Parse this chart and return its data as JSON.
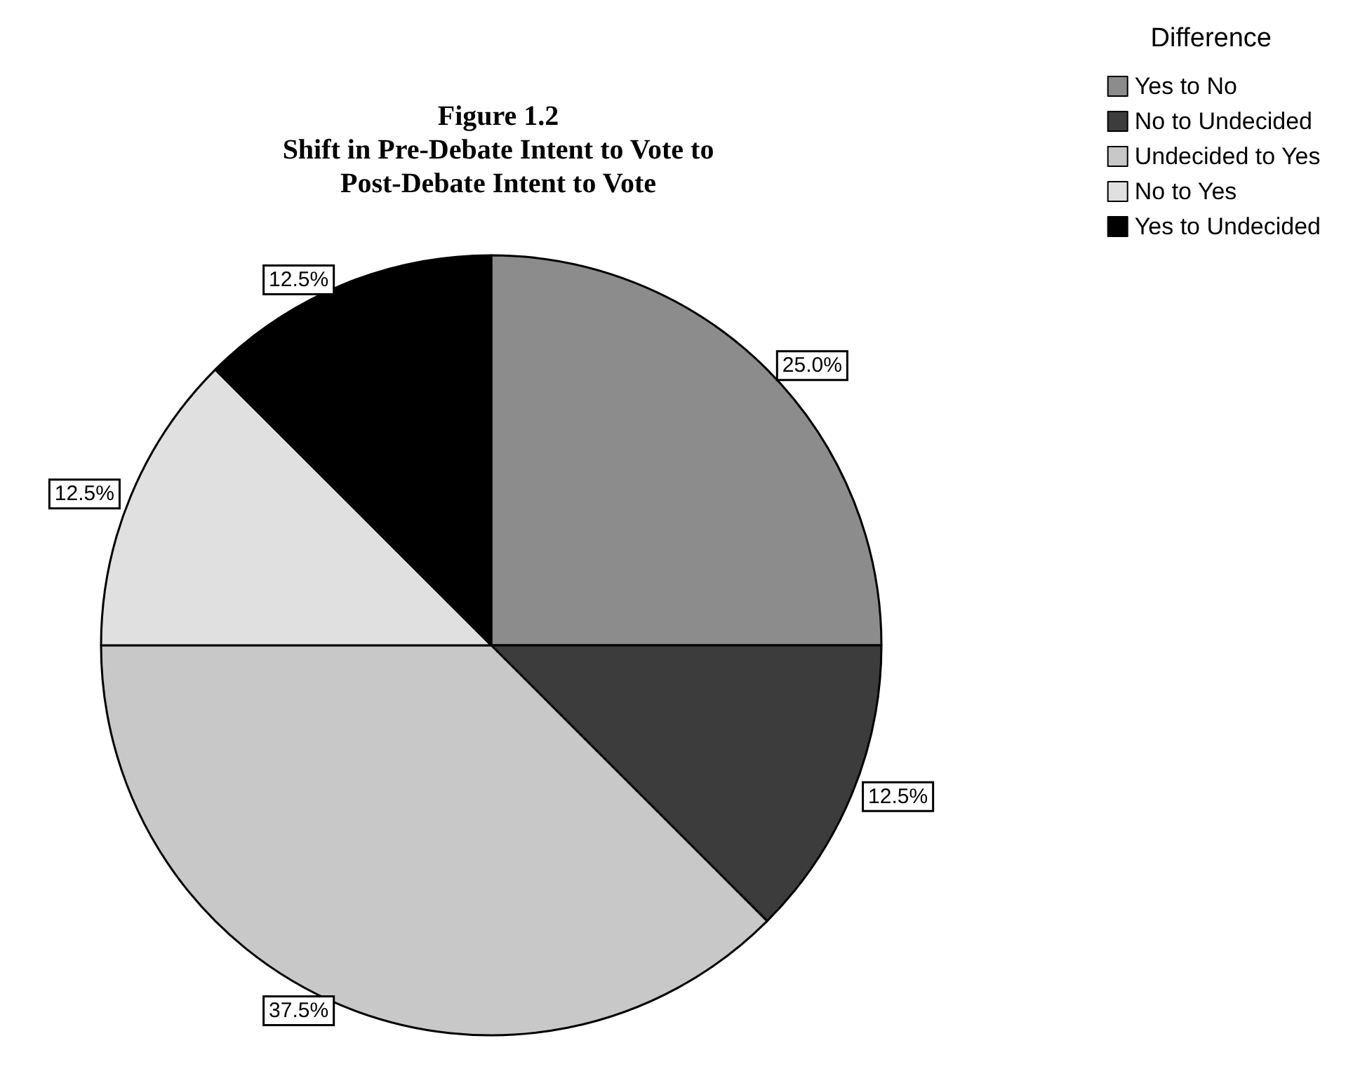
{
  "chart_data": {
    "type": "pie",
    "title": "Figure 1.2\nShift in Pre-Debate Intent to Vote to\nPost-Debate Intent to Vote",
    "legend_title": "Difference",
    "categories": [
      "Yes to No",
      "No to Undecided",
      "Undecided to Yes",
      "No to Yes",
      "Yes to Undecided"
    ],
    "values": [
      25,
      12.5,
      37.5,
      12.5,
      12.5
    ],
    "colors": [
      "#8c8c8c",
      "#3c3c3c",
      "#c8c8c8",
      "#e0e0e0",
      "#000000"
    ],
    "value_labels": [
      "25.0%",
      "12.5%",
      "37.5%",
      "12.5%",
      "12.5%"
    ],
    "legend": "top right"
  }
}
